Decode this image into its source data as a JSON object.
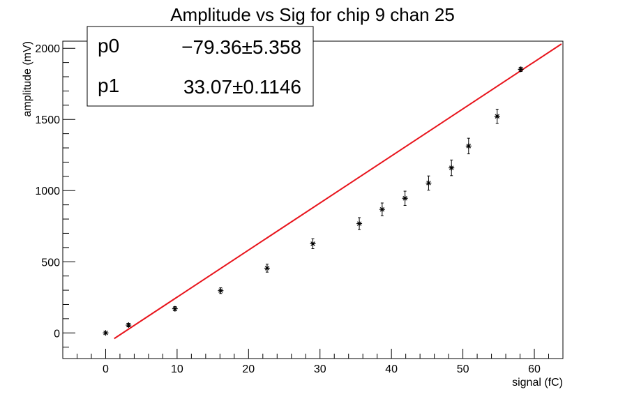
{
  "chart_data": {
    "type": "scatter",
    "title": "Amplitude vs Sig for chip 9 chan 25",
    "xlabel": "signal (fC)",
    "ylabel": "amplitude (mV)",
    "xlim": [
      -6,
      64
    ],
    "ylim": [
      -180,
      2050
    ],
    "xticks": [
      0,
      10,
      20,
      30,
      40,
      50,
      60
    ],
    "yticks": [
      0,
      500,
      1000,
      1500,
      2000
    ],
    "x_tick_labels": [
      "0",
      "10",
      "20",
      "30",
      "40",
      "50",
      "60"
    ],
    "y_tick_labels": [
      "0",
      "500",
      "1000",
      "1500",
      "2000"
    ],
    "series": [
      {
        "points": [
          {
            "x": 0.0,
            "y": 0,
            "err": 0
          },
          {
            "x": 3.2,
            "y": 55,
            "err": 12
          },
          {
            "x": 9.7,
            "y": 170,
            "err": 15
          },
          {
            "x": 16.1,
            "y": 297,
            "err": 20
          },
          {
            "x": 22.6,
            "y": 455,
            "err": 28
          },
          {
            "x": 29.0,
            "y": 627,
            "err": 35
          },
          {
            "x": 35.5,
            "y": 768,
            "err": 42
          },
          {
            "x": 38.7,
            "y": 868,
            "err": 45
          },
          {
            "x": 41.9,
            "y": 946,
            "err": 50
          },
          {
            "x": 45.2,
            "y": 1053,
            "err": 50
          },
          {
            "x": 48.4,
            "y": 1160,
            "err": 55
          },
          {
            "x": 50.8,
            "y": 1313,
            "err": 55
          },
          {
            "x": 54.8,
            "y": 1522,
            "err": 50
          },
          {
            "x": 58.1,
            "y": 1852,
            "err": 15
          }
        ]
      }
    ],
    "fit": {
      "function": "p0 + p1*x",
      "p0": -79.36,
      "p1": 33.07,
      "x_range": [
        1.2,
        63.8
      ],
      "color": "#e8141c"
    },
    "stats_box": {
      "rows": [
        {
          "name": "p0",
          "value": "−79.36",
          "pm": "±",
          "error": "5.358"
        },
        {
          "name": "p1",
          "value": "33.07",
          "pm": "±",
          "error": "0.1146"
        }
      ],
      "placement": "top-left"
    },
    "grid": false
  }
}
